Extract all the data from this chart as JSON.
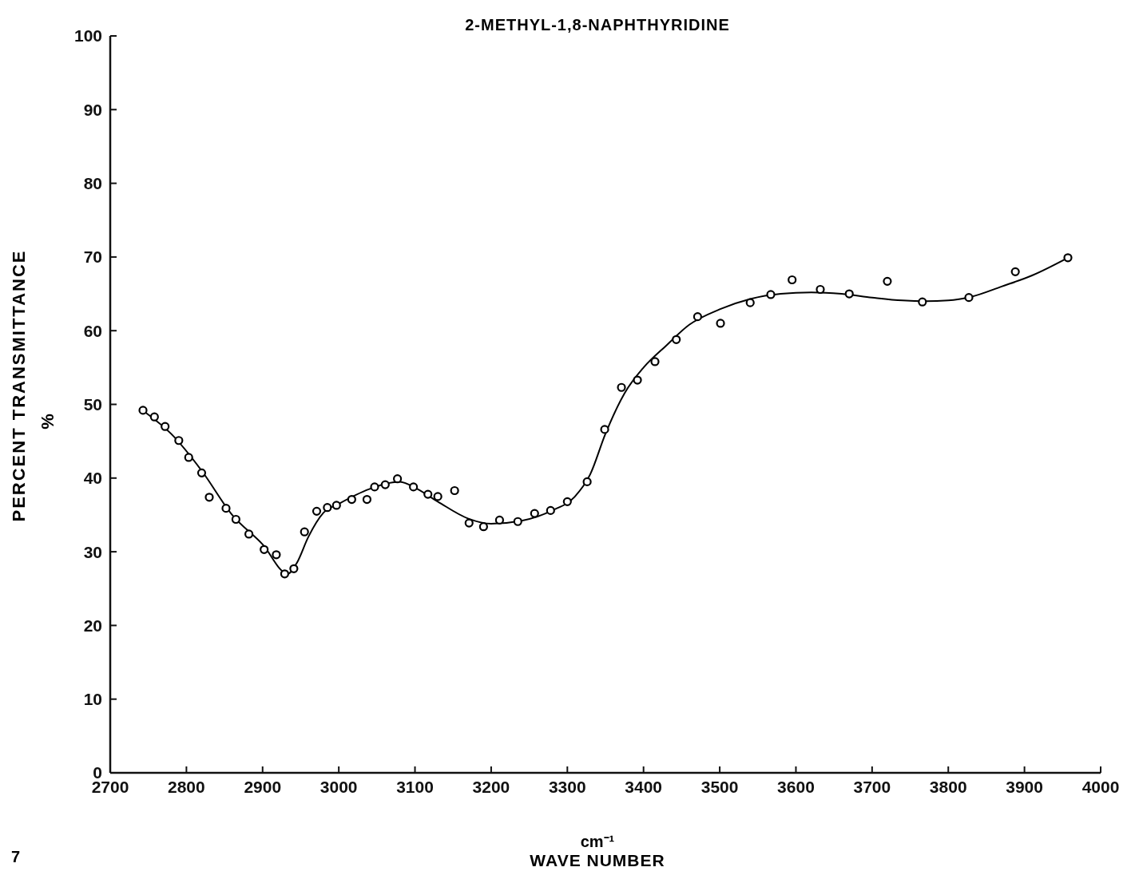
{
  "chart_data": {
    "type": "scatter",
    "title": "2-METHYL-1,8-NAPHTHYRIDINE",
    "xlabel": "WAVE NUMBER",
    "ylabel": "PERCENT TRANSMITTANCE",
    "annotations": [
      "cm⁻¹",
      "%",
      "7"
    ],
    "xlim": [
      2700,
      4000
    ],
    "xticks": [
      2700,
      2800,
      2900,
      3000,
      3100,
      3200,
      3300,
      3400,
      3500,
      3600,
      3700,
      3800,
      3900,
      4000
    ],
    "ylim": [
      0,
      100
    ],
    "yticks": [
      0,
      10,
      20,
      30,
      40,
      50,
      60,
      70,
      80,
      90,
      100
    ],
    "grid": false,
    "line_style": "solid",
    "series": [
      {
        "type": "line",
        "color": "#000000",
        "x": [
          2745,
          2780,
          2820,
          2860,
          2900,
          2933,
          2945,
          2960,
          2980,
          3000,
          3040,
          3080,
          3100,
          3130,
          3170,
          3200,
          3240,
          3280,
          3310,
          3330,
          3350,
          3375,
          3400,
          3430,
          3460,
          3500,
          3540,
          3580,
          3620,
          3660,
          3700,
          3740,
          3770,
          3800,
          3830,
          3870,
          3910,
          3957
        ],
        "values": [
          49,
          46,
          41,
          35,
          31,
          27,
          28.5,
          32,
          35.3,
          36.5,
          38.5,
          39.5,
          38.7,
          36.8,
          34.5,
          33.8,
          34.2,
          35.6,
          37.5,
          40.5,
          46,
          51.5,
          55,
          58,
          60.8,
          62.9,
          64.3,
          65,
          65.2,
          65,
          64.5,
          64.1,
          64,
          64.1,
          64.6,
          66,
          67.5,
          69.9
        ]
      },
      {
        "marker": "circle",
        "color": "#000000",
        "x": [
          2743,
          2758,
          2772,
          2790,
          2803,
          2820,
          2830,
          2852,
          2865,
          2882,
          2902,
          2918,
          2929,
          2941,
          2955,
          2971,
          2985,
          2997,
          3017,
          3037,
          3047,
          3061,
          3077,
          3098,
          3117,
          3130,
          3152,
          3171,
          3190,
          3211,
          3235,
          3257,
          3278,
          3300,
          3326,
          3349,
          3371,
          3392,
          3415,
          3443,
          3471,
          3501,
          3540,
          3567,
          3595,
          3632,
          3670,
          3720,
          3766,
          3827,
          3888,
          3957
        ],
        "values": [
          49.2,
          48.3,
          47,
          45.1,
          42.8,
          40.7,
          37.4,
          35.9,
          34.4,
          32.4,
          30.3,
          29.6,
          27,
          27.7,
          32.7,
          35.5,
          36,
          36.3,
          37.1,
          37.1,
          38.8,
          39.1,
          39.9,
          38.8,
          37.8,
          37.5,
          38.3,
          33.9,
          33.4,
          34.3,
          34.1,
          35.2,
          35.6,
          36.8,
          39.5,
          46.6,
          52.3,
          53.3,
          55.8,
          58.8,
          61.9,
          61,
          63.8,
          64.9,
          66.9,
          65.6,
          65,
          66.7,
          63.9,
          64.5,
          68,
          69.9
        ]
      }
    ]
  }
}
